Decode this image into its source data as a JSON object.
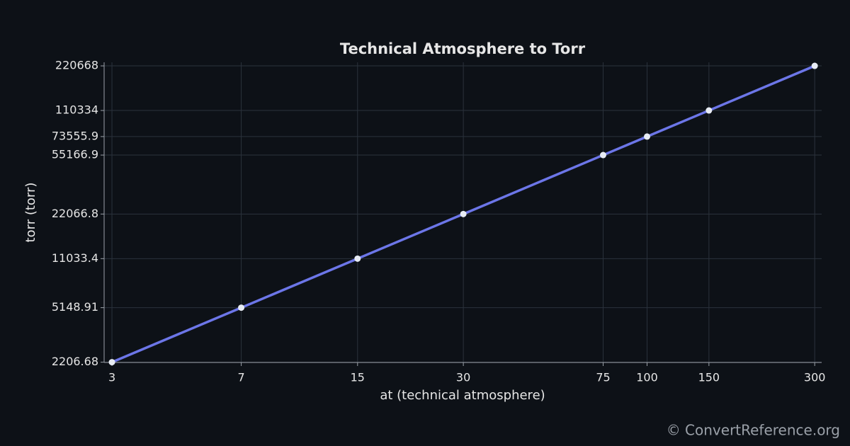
{
  "chart_data": {
    "type": "line",
    "title": "Technical Atmosphere to Torr",
    "x_label": "at (technical atmosphere)",
    "y_label": "torr (torr)",
    "x": [
      3,
      7,
      15,
      30,
      75,
      100,
      150,
      300
    ],
    "series": [
      {
        "name": "torr",
        "color": "#6c76e8",
        "values": [
          2206.68,
          5148.91,
          11033.4,
          22066.8,
          55166.9,
          73555.9,
          110334,
          220668
        ]
      }
    ],
    "x_scale": "log",
    "y_scale": "log",
    "xlim": [
      2.85,
      314
    ],
    "ylim": [
      2197,
      233300
    ],
    "xticks": [
      3,
      7,
      15,
      30,
      75,
      100,
      150,
      300
    ],
    "yticks": [
      2206.68,
      5148.91,
      11033.4,
      22066.8,
      55166.9,
      73555.9,
      110334,
      220668
    ],
    "grid": true,
    "marker_color": "#e8ecf4",
    "watermark": "© ConvertReference.org"
  }
}
